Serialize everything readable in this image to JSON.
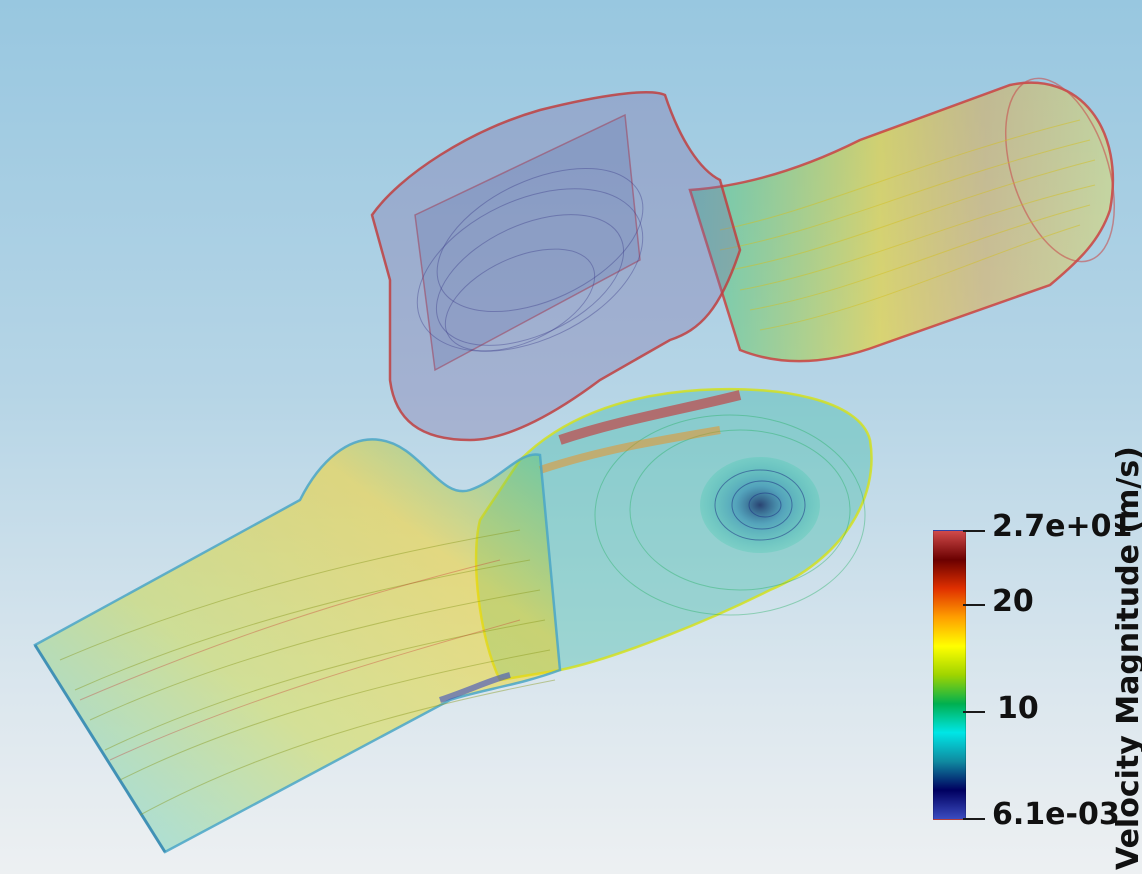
{
  "scalar_bar": {
    "title": "Velocity Magnitude (m/s)",
    "max_label": "2.7e+01",
    "min_label": "6.1e-03",
    "ticks": [
      {
        "label": "20",
        "value": 20
      },
      {
        "label": "10",
        "value": 10
      }
    ],
    "range": [
      0.0061,
      27
    ]
  },
  "colors": {
    "background_top": "#98c7e0",
    "background_bottom": "#edf0f2",
    "colormap": [
      "#3b4cc0",
      "#000060",
      "#0f8aa0",
      "#00e6e6",
      "#00b050",
      "#9fd400",
      "#ffff00",
      "#ff9f00",
      "#e03000",
      "#6b0000",
      "#d04a4a"
    ]
  }
}
